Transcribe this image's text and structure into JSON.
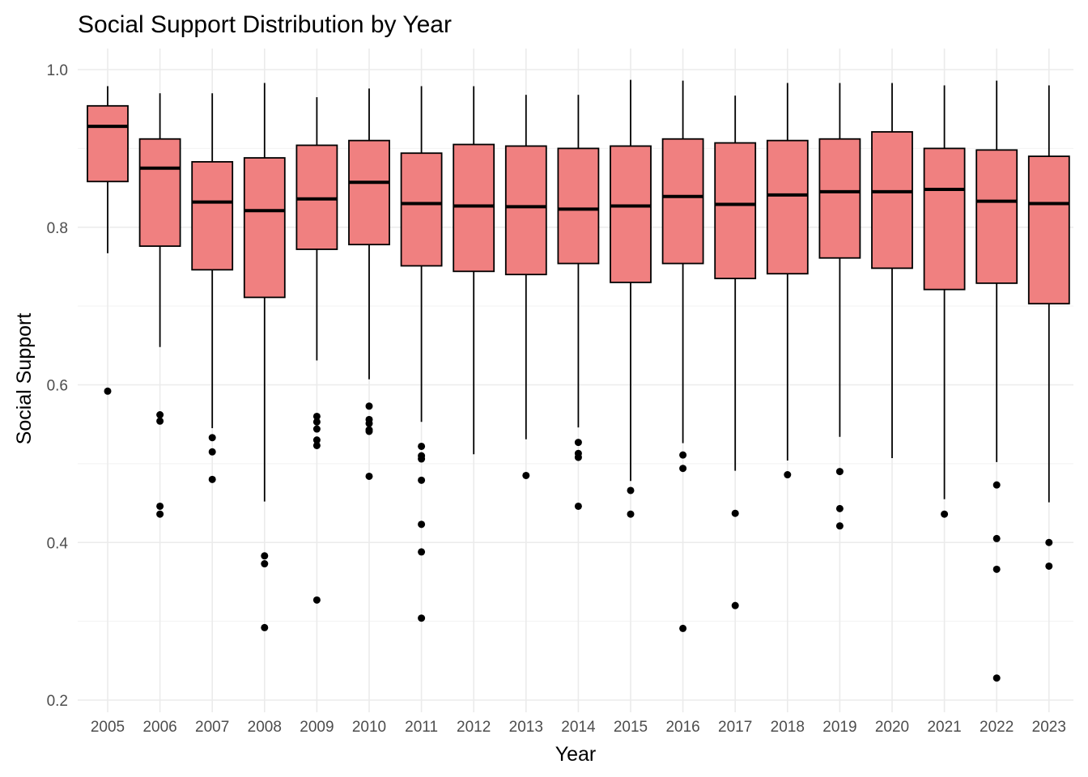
{
  "chart_data": {
    "type": "boxplot",
    "title": "Social Support Distribution by Year",
    "xlabel": "Year",
    "ylabel": "Social Support",
    "ylim": [
      0.19,
      1.02
    ],
    "yticks": [
      "0.2",
      "0.4",
      "0.6",
      "0.8",
      "1.0"
    ],
    "grid": true,
    "fill_color": "#f08080",
    "categories": [
      "2005",
      "2006",
      "2007",
      "2008",
      "2009",
      "2010",
      "2011",
      "2012",
      "2013",
      "2014",
      "2015",
      "2016",
      "2017",
      "2018",
      "2019",
      "2020",
      "2021",
      "2022",
      "2023"
    ],
    "boxes": [
      {
        "year": "2005",
        "min": 0.767,
        "q1": 0.858,
        "median": 0.928,
        "q3": 0.954,
        "max": 0.979,
        "outliers": [
          0.592
        ]
      },
      {
        "year": "2006",
        "min": 0.648,
        "q1": 0.776,
        "median": 0.875,
        "q3": 0.912,
        "max": 0.97,
        "outliers": [
          0.562,
          0.554,
          0.446,
          0.436
        ]
      },
      {
        "year": "2007",
        "min": 0.545,
        "q1": 0.746,
        "median": 0.832,
        "q3": 0.883,
        "max": 0.97,
        "outliers": [
          0.533,
          0.515,
          0.48
        ]
      },
      {
        "year": "2008",
        "min": 0.452,
        "q1": 0.711,
        "median": 0.821,
        "q3": 0.888,
        "max": 0.983,
        "outliers": [
          0.383,
          0.373,
          0.292
        ]
      },
      {
        "year": "2009",
        "min": 0.631,
        "q1": 0.772,
        "median": 0.836,
        "q3": 0.904,
        "max": 0.965,
        "outliers": [
          0.56,
          0.553,
          0.544,
          0.53,
          0.523,
          0.327
        ]
      },
      {
        "year": "2010",
        "min": 0.607,
        "q1": 0.778,
        "median": 0.857,
        "q3": 0.91,
        "max": 0.976,
        "outliers": [
          0.573,
          0.556,
          0.551,
          0.543,
          0.541,
          0.484
        ]
      },
      {
        "year": "2011",
        "min": 0.553,
        "q1": 0.751,
        "median": 0.83,
        "q3": 0.894,
        "max": 0.979,
        "outliers": [
          0.522,
          0.51,
          0.506,
          0.479,
          0.423,
          0.388,
          0.304
        ]
      },
      {
        "year": "2012",
        "min": 0.512,
        "q1": 0.744,
        "median": 0.827,
        "q3": 0.905,
        "max": 0.979,
        "outliers": []
      },
      {
        "year": "2013",
        "min": 0.531,
        "q1": 0.74,
        "median": 0.826,
        "q3": 0.903,
        "max": 0.968,
        "outliers": [
          0.485
        ]
      },
      {
        "year": "2014",
        "min": 0.546,
        "q1": 0.754,
        "median": 0.823,
        "q3": 0.9,
        "max": 0.968,
        "outliers": [
          0.527,
          0.513,
          0.508,
          0.446
        ]
      },
      {
        "year": "2015",
        "min": 0.478,
        "q1": 0.73,
        "median": 0.827,
        "q3": 0.903,
        "max": 0.987,
        "outliers": [
          0.466,
          0.436
        ]
      },
      {
        "year": "2016",
        "min": 0.526,
        "q1": 0.754,
        "median": 0.839,
        "q3": 0.912,
        "max": 0.986,
        "outliers": [
          0.511,
          0.494,
          0.291
        ]
      },
      {
        "year": "2017",
        "min": 0.491,
        "q1": 0.735,
        "median": 0.829,
        "q3": 0.907,
        "max": 0.967,
        "outliers": [
          0.437,
          0.32
        ]
      },
      {
        "year": "2018",
        "min": 0.504,
        "q1": 0.741,
        "median": 0.841,
        "q3": 0.91,
        "max": 0.983,
        "outliers": [
          0.486
        ]
      },
      {
        "year": "2019",
        "min": 0.534,
        "q1": 0.761,
        "median": 0.845,
        "q3": 0.912,
        "max": 0.983,
        "outliers": [
          0.49,
          0.443,
          0.421
        ]
      },
      {
        "year": "2020",
        "min": 0.507,
        "q1": 0.748,
        "median": 0.845,
        "q3": 0.921,
        "max": 0.983,
        "outliers": []
      },
      {
        "year": "2021",
        "min": 0.455,
        "q1": 0.721,
        "median": 0.848,
        "q3": 0.9,
        "max": 0.98,
        "outliers": [
          0.436
        ]
      },
      {
        "year": "2022",
        "min": 0.502,
        "q1": 0.729,
        "median": 0.833,
        "q3": 0.898,
        "max": 0.986,
        "outliers": [
          0.473,
          0.405,
          0.366,
          0.228
        ]
      },
      {
        "year": "2023",
        "min": 0.451,
        "q1": 0.703,
        "median": 0.83,
        "q3": 0.89,
        "max": 0.98,
        "outliers": [
          0.4,
          0.37
        ]
      }
    ]
  }
}
